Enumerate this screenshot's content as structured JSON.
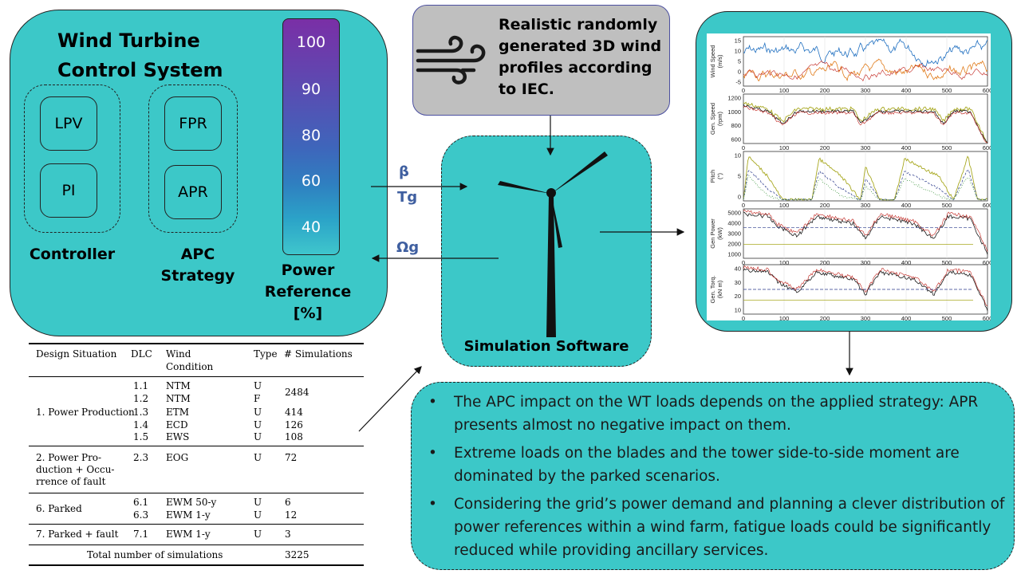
{
  "control_system": {
    "title_line1": "Wind Turbine",
    "title_line2": "Control System",
    "controllers": [
      "LPV",
      "PI"
    ],
    "controller_label": "Controller",
    "strategies": [
      "FPR",
      "APR"
    ],
    "strategy_label_line1": "APC",
    "strategy_label_line2": "Strategy",
    "scale_ticks": [
      "100",
      "90",
      "80",
      "60",
      "40"
    ],
    "scale_label_line1": "Power",
    "scale_label_line2": "Reference [%]"
  },
  "signals": {
    "beta": "β",
    "tg": "Tg",
    "omega": "Ωg"
  },
  "wind_profile": {
    "line1": "Realistic randomly",
    "line2": "generated 3D wind",
    "line3": "profiles according",
    "line4": "to IEC."
  },
  "simulation": {
    "label": "Simulation Software"
  },
  "plots": {
    "x_ticks": [
      "0",
      "100",
      "200",
      "300",
      "400",
      "500",
      "600"
    ],
    "panels": [
      {
        "ylabel1": "Wind Speed",
        "ylabel2": "(m/s)",
        "yticks": [
          "15",
          "10",
          "5",
          "0",
          "-5"
        ]
      },
      {
        "ylabel1": "Gen. Speed",
        "ylabel2": "(rpm)",
        "yticks": [
          "1200",
          "1000",
          "800",
          "600"
        ]
      },
      {
        "ylabel1": "Pitch",
        "ylabel2": "(°)",
        "yticks": [
          "10",
          "5",
          "0"
        ]
      },
      {
        "ylabel1": "Gen Power",
        "ylabel2": "(kW)",
        "yticks": [
          "5000",
          "4000",
          "3000",
          "2000",
          "1000"
        ]
      },
      {
        "ylabel1": "Gen. Torq.",
        "ylabel2": "(kN m)",
        "yticks": [
          "40",
          "30",
          "20",
          "10"
        ]
      }
    ],
    "colors": {
      "blue": "#1f6fc0",
      "orange": "#e07b1a",
      "red": "#c0201a",
      "dark": "#1a1a1a",
      "olive": "#a8a820",
      "green": "#2a8a2a",
      "navy": "#2a3a8a"
    }
  },
  "table": {
    "headers": [
      "Design Situation",
      "DLC",
      "Wind",
      "Condition",
      "Type",
      "# Simulations"
    ],
    "group1": {
      "situation": "1. Power Production",
      "rows": [
        {
          "dlc": "1.1",
          "wind": "NTM",
          "type": "U"
        },
        {
          "dlc": "1.2",
          "wind": "NTM",
          "type": "F"
        },
        {
          "dlc": "1.3",
          "wind": "ETM",
          "type": "U",
          "sims": "414"
        },
        {
          "dlc": "1.4",
          "wind": "ECD",
          "type": "U",
          "sims": "126"
        },
        {
          "dlc": "1.5",
          "wind": "EWS",
          "type": "U",
          "sims": "108"
        }
      ],
      "merged_sims": "2484"
    },
    "group2": {
      "situation_l1": "2.  Power  Pro-",
      "situation_l2": "duction + Occu-",
      "situation_l3": "rrence of fault",
      "dlc": "2.3",
      "wind": "EOG",
      "type": "U",
      "sims": "72"
    },
    "group3": {
      "situation": "6. Parked",
      "rows": [
        {
          "dlc": "6.1",
          "wind": "EWM 50-y",
          "type": "U",
          "sims": "6"
        },
        {
          "dlc": "6.3",
          "wind": "EWM 1-y",
          "type": "U",
          "sims": "12"
        }
      ]
    },
    "group4": {
      "situation": "7. Parked + fault",
      "dlc": "7.1",
      "wind": "EWM 1-y",
      "type": "U",
      "sims": "3"
    },
    "total_label": "Total number of simulations",
    "total_value": "3225"
  },
  "conclusions": [
    "The APC impact on the WT loads depends on the applied strategy: APR presents almost no negative impact on them.",
    "Extreme loads on the blades and the tower side-to-side moment are dominated by the parked scenarios.",
    "Considering the grid’s power demand and planning a clever distribution of power references within a wind farm, fatigue loads could be significantly reduced while providing ancillary services."
  ],
  "colors": {
    "teal": "#3cc8c8",
    "grey_box": "#bfbfbf",
    "signal_blue": "#3f5fa0"
  }
}
